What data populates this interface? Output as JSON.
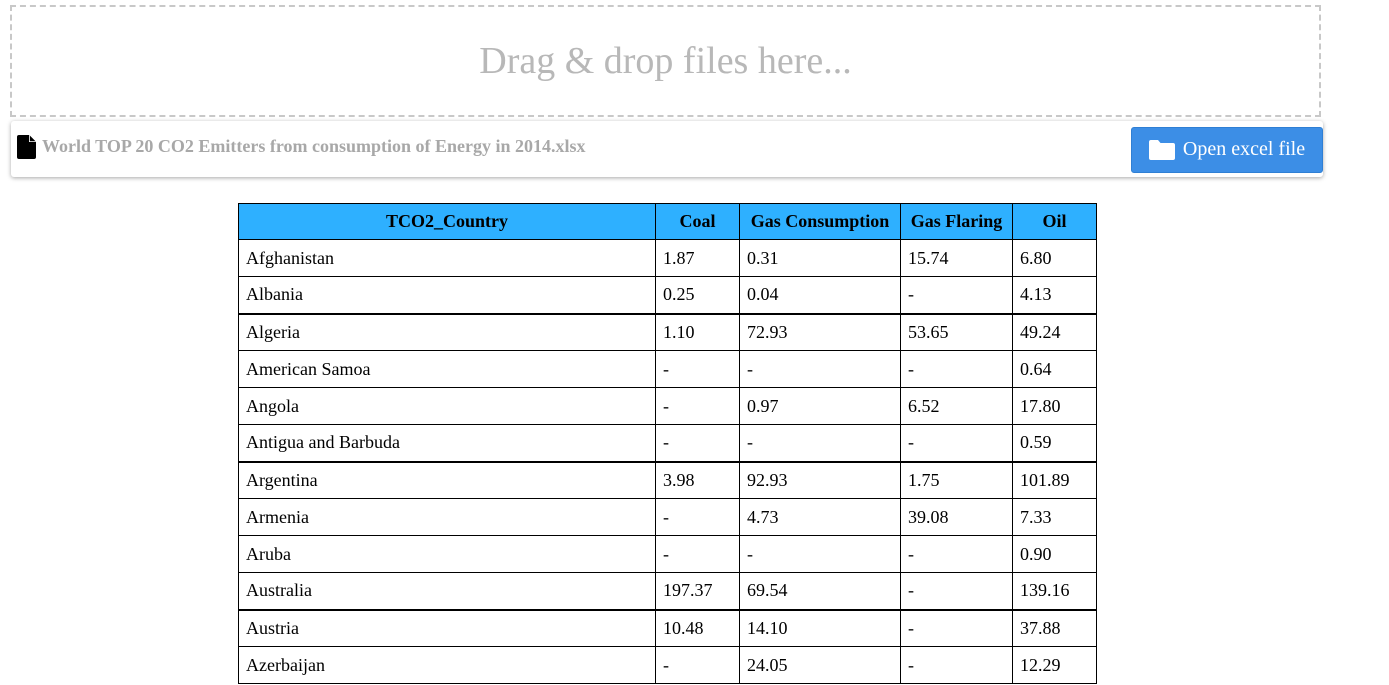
{
  "dropzone": {
    "label": "Drag & drop files here..."
  },
  "filebar": {
    "icon": "file-icon",
    "file_name": "World TOP 20 CO2 Emitters from consumption of Energy in 2014.xlsx",
    "open_button": {
      "label": "Open excel file",
      "icon": "folder-icon",
      "color": "#3c8ee6"
    }
  },
  "table": {
    "header_color": "#2eb0ff",
    "columns": [
      "TCO2_Country",
      "Coal",
      "Gas Consumption",
      "Gas Flaring",
      "Oil"
    ],
    "rows": [
      [
        "Afghanistan",
        "1.87",
        "0.31",
        "15.74",
        "6.80"
      ],
      [
        "Albania",
        "0.25",
        "0.04",
        "-",
        "4.13"
      ],
      [
        "Algeria",
        "1.10",
        "72.93",
        "53.65",
        "49.24"
      ],
      [
        "American Samoa",
        "-",
        "-",
        "-",
        "0.64"
      ],
      [
        "Angola",
        "-",
        "0.97",
        "6.52",
        "17.80"
      ],
      [
        "Antigua and Barbuda",
        "-",
        "-",
        "-",
        "0.59"
      ],
      [
        "Argentina",
        "3.98",
        "92.93",
        "1.75",
        "101.89"
      ],
      [
        "Armenia",
        "-",
        "4.73",
        "39.08",
        "7.33"
      ],
      [
        "Aruba",
        "-",
        "-",
        "-",
        "0.90"
      ],
      [
        "Australia",
        "197.37",
        "69.54",
        "-",
        "139.16"
      ],
      [
        "Austria",
        "10.48",
        "14.10",
        "-",
        "37.88"
      ],
      [
        "Azerbaijan",
        "-",
        "24.05",
        "-",
        "12.29"
      ]
    ]
  }
}
